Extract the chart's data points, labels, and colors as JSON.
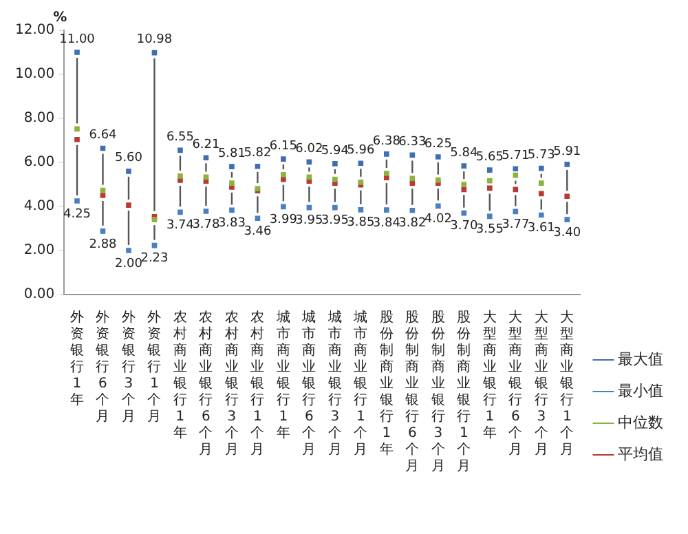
{
  "chart_data": {
    "type": "scatter",
    "ylabel": "%",
    "categories": [
      "外资银行1年",
      "外资银行6个月",
      "外资银行3个月",
      "外资银行1个月",
      "农村商业银行1年",
      "农村商业银行6个月",
      "农村商业银行3个月",
      "农村商业银行1个月",
      "城市商业银行1年",
      "城市商业银行6个月",
      "城市商业银行3个月",
      "城市商业银行1个月",
      "股份制商业银行1年",
      "股份制商业银行6个月",
      "股份制商业银行3个月",
      "股份制商业银行1个月",
      "大型商业银行1年",
      "大型商业银行6个月",
      "大型商业银行3个月",
      "大型商业银行1个月"
    ],
    "series": [
      {
        "name": "最大值",
        "color": "#3f6fb0",
        "values": [
          11.0,
          6.64,
          5.6,
          10.98,
          6.55,
          6.21,
          5.81,
          5.82,
          6.15,
          6.02,
          5.94,
          5.96,
          6.38,
          6.33,
          6.25,
          5.84,
          5.65,
          5.71,
          5.73,
          5.91
        ],
        "value_labels": [
          "11.00",
          "6.64",
          "5.60",
          "10.98",
          "6.55",
          "6.21",
          "5.81",
          "5.82",
          "6.15",
          "6.02",
          "5.94",
          "5.96",
          "6.38",
          "6.33",
          "6.25",
          "5.84",
          "5.65",
          "5.71",
          "5.73",
          "5.91"
        ]
      },
      {
        "name": "最小值",
        "color": "#4a7fc0",
        "values": [
          4.25,
          2.88,
          2.0,
          2.23,
          3.74,
          3.78,
          3.83,
          3.46,
          3.99,
          3.95,
          3.95,
          3.85,
          3.84,
          3.82,
          4.02,
          3.7,
          3.55,
          3.77,
          3.61,
          3.4
        ],
        "value_labels": [
          "4.25",
          "2.88",
          "2.00",
          "2.23",
          "3.74",
          "3.78",
          "3.83",
          "3.46",
          "3.99",
          "3.95",
          "3.95",
          "3.85",
          "3.84",
          "3.82",
          "4.02",
          "3.70",
          "3.55",
          "3.77",
          "3.61",
          "3.40"
        ]
      },
      {
        "name": "中位数",
        "color": "#8db33e",
        "values": [
          7.52,
          4.73,
          null,
          3.4,
          5.38,
          5.33,
          5.06,
          4.81,
          5.44,
          5.33,
          5.23,
          5.1,
          5.5,
          5.27,
          5.2,
          5.0,
          5.17,
          5.42,
          5.06,
          null
        ]
      },
      {
        "name": "平均值",
        "color": "#b83a36",
        "values": [
          7.04,
          4.5,
          4.06,
          3.54,
          5.19,
          5.15,
          4.88,
          4.71,
          5.23,
          5.15,
          5.06,
          4.98,
          5.31,
          5.06,
          5.06,
          4.77,
          4.83,
          4.77,
          4.58,
          4.46
        ]
      }
    ],
    "ylim": [
      0,
      12
    ],
    "yticks": [
      {
        "value": 0,
        "label": "0.00"
      },
      {
        "value": 2,
        "label": "2.00"
      },
      {
        "value": 4,
        "label": "4.00"
      },
      {
        "value": 6,
        "label": "6.00"
      },
      {
        "value": 8,
        "label": "8.00"
      },
      {
        "value": 10,
        "label": "10.00"
      },
      {
        "value": 12,
        "label": "12.00"
      }
    ],
    "grid": false,
    "legend": "right",
    "marker": "square"
  }
}
